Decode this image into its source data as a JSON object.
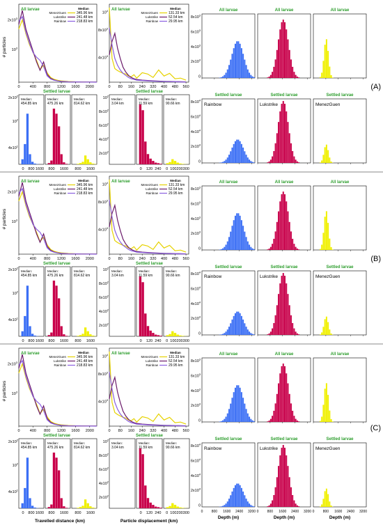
{
  "figure": {
    "panel_labels": [
      "(A)",
      "(B)",
      "(C)"
    ],
    "y_axis_label": "# particles",
    "x_label_distance": "Travelled distance (km)",
    "x_label_displacement": "Particle displacement (km)",
    "x_label_depth": "Depth (m)",
    "all_title": "All larvae",
    "settled_title": "Settled larvae",
    "median_header": "Median",
    "median_word": "Median:"
  },
  "colors": {
    "MenezGuen": "#e6d200",
    "Lukstrike": "#6b1a6b",
    "Rainbow": "#8a5fe0",
    "depth_Rainbow": "#3b6ff5",
    "depth_Lukstrike": "#c8004a",
    "depth_MenezGuen": "#f0f000",
    "header_green": "#2e9e2e",
    "fill_pink": "#ff8fcf"
  },
  "chart_data": {
    "type": "line",
    "sites": [
      "MenezGuen",
      "Lukstrike",
      "Rainbow"
    ],
    "depth_sites": [
      "Rainbow",
      "Lukstrike",
      "MenezGuen"
    ],
    "distance": {
      "xticks": [
        "0",
        "400",
        "800",
        "1200",
        "1600",
        "2000"
      ],
      "xmax": 2200,
      "yticks": [
        "2x10^3",
        "10^3"
      ],
      "ymax": 2500,
      "x": [
        0,
        100,
        200,
        300,
        400,
        500,
        600,
        700,
        800,
        900,
        1000,
        1100,
        1200,
        1400,
        1600,
        1800,
        2000,
        2200
      ],
      "series": [
        {
          "name": "MenezGuen",
          "values": [
            1700,
            2000,
            1550,
            1200,
            950,
            700,
            400,
            550,
            300,
            150,
            90,
            60,
            40,
            20,
            12,
            8,
            5,
            3
          ]
        },
        {
          "name": "Lukstrike",
          "values": [
            1850,
            2300,
            1700,
            1350,
            1000,
            650,
            380,
            650,
            250,
            120,
            70,
            40,
            25,
            12,
            8,
            5,
            3,
            2
          ]
        },
        {
          "name": "Rainbow",
          "values": [
            1950,
            2100,
            1600,
            1250,
            950,
            800,
            700,
            500,
            200,
            100,
            60,
            40,
            20,
            10,
            6,
            4,
            2,
            1
          ]
        }
      ],
      "medians": [
        "345.96 km",
        "241.48 km",
        "218.83 km"
      ]
    },
    "displacement": {
      "xticks": [
        "0",
        "80",
        "160",
        "240",
        "320",
        "400",
        "480",
        "560"
      ],
      "xmax": 580,
      "yticks": [
        "10^4",
        "8x10^3",
        "4x10^3"
      ],
      "ymax": 11500,
      "x": [
        0,
        20,
        40,
        60,
        80,
        100,
        120,
        140,
        160,
        180,
        200,
        240,
        280,
        320,
        360,
        400,
        440,
        480,
        520,
        560
      ],
      "series": [
        {
          "name": "MenezGuen",
          "values": [
            11000,
            3500,
            2000,
            1700,
            1500,
            1300,
            1200,
            900,
            800,
            1100,
            600,
            1400,
            1200,
            700,
            1800,
            900,
            1300,
            500,
            600,
            300
          ]
        },
        {
          "name": "Lukstrike",
          "values": [
            4000,
            6000,
            7200,
            5000,
            3500,
            2200,
            1500,
            1000,
            700,
            500,
            400,
            300,
            250,
            200,
            150,
            120,
            100,
            80,
            60,
            40
          ]
        },
        {
          "name": "Rainbow",
          "values": [
            8000,
            5500,
            3500,
            2500,
            1800,
            1300,
            1000,
            700,
            500,
            400,
            300,
            250,
            200,
            150,
            120,
            100,
            80,
            60,
            40,
            20
          ]
        }
      ],
      "medians": [
        "131.33 km",
        "52.54 km",
        "29.95 km"
      ]
    },
    "settled_distance": {
      "yticks": [
        "2x10^2",
        "10^2",
        "4x10^1"
      ],
      "ymax": 220,
      "medians": [
        "454.85 km",
        "475.26 km",
        "814.62 km"
      ],
      "subplots": [
        {
          "name": "Rainbow",
          "xticks": [
            "0",
            "800",
            "1600"
          ],
          "peak_x": 400,
          "values": [
            0,
            20,
            80,
            200,
            40,
            10,
            3,
            1,
            0,
            0
          ]
        },
        {
          "name": "Lukstrike",
          "xticks": [
            "800",
            "1600"
          ],
          "peak_x": 480,
          "values": [
            0,
            5,
            15,
            220,
            200,
            150,
            40,
            8,
            2,
            0
          ]
        },
        {
          "name": "MenezGuen",
          "xticks": [
            "800",
            "1600"
          ],
          "peak_x": 820,
          "values": [
            0,
            0,
            2,
            5,
            10,
            35,
            20,
            8,
            3,
            1
          ]
        }
      ]
    },
    "settled_displacement": {
      "yticks": [
        "10^2",
        "8x10^2",
        "6x10^2",
        "4x10^2",
        "2x10^2"
      ],
      "ymax": 1100,
      "medians": [
        "3.04 km",
        "11.59 km",
        "90.66 km"
      ],
      "subplots": [
        {
          "name": "Rainbow",
          "xticks": [],
          "values": [
            0,
            0,
            0,
            0,
            0,
            0,
            0,
            0,
            0,
            0
          ]
        },
        {
          "name": "Lukstrike",
          "xticks": [
            "0",
            "120",
            "240"
          ],
          "values": [
            0,
            1050,
            950,
            400,
            180,
            100,
            60,
            30,
            20,
            10
          ]
        },
        {
          "name": "MenezGuen",
          "xticks": [
            "0",
            "100",
            "200",
            "300"
          ],
          "values": [
            0,
            20,
            40,
            90,
            60,
            30,
            15,
            8,
            3,
            1
          ]
        }
      ]
    },
    "depth": {
      "xticks": [
        "0",
        "800",
        "1600",
        "2400",
        "3200"
      ],
      "xmax": 3400,
      "all_yticks": [
        "8x10^3",
        "6x10^3",
        "4x10^3",
        "2x10^3",
        "0"
      ],
      "all_ymax": 9000,
      "settled_yticks": [
        "8x10^4",
        "6x10^4",
        "4x10^4",
        "2x10^4",
        "0"
      ],
      "settled_ymax": 9000,
      "bin_width": 100,
      "series": [
        {
          "name": "Rainbow",
          "center": 2300,
          "spread": 380,
          "all_peak": 5200,
          "settled_peak": 3300
        },
        {
          "name": "Lukstrike",
          "center": 1650,
          "spread": 330,
          "all_peak": 8200,
          "settled_peak": 8700
        },
        {
          "name": "MenezGuen",
          "center": 830,
          "spread": 140,
          "all_peak": 5500,
          "settled_peak": 2600
        }
      ]
    }
  }
}
